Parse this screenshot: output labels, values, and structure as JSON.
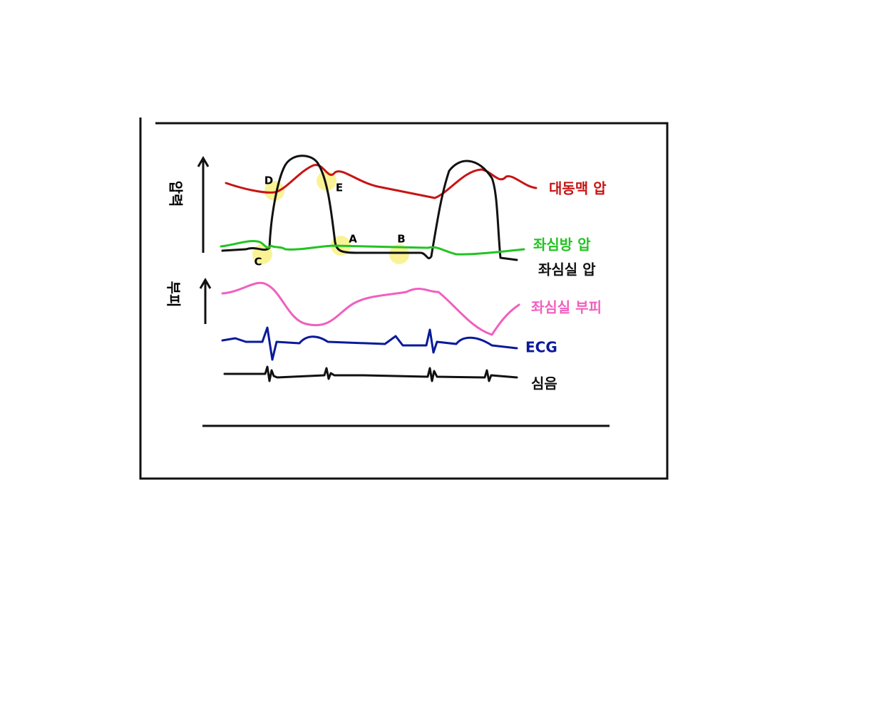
{
  "axes": {
    "pressure": "압력",
    "volume": "부피"
  },
  "curves": {
    "aorta": "대동맥 압",
    "left_atrium": "좌심방 압",
    "left_ventricle": "좌심실 압",
    "volume": "좌심실 부피",
    "ecg": "ECG",
    "heart_sound": "심음"
  },
  "points": {
    "a": "A",
    "b": "B",
    "c": "C",
    "d": "D",
    "e": "E"
  }
}
